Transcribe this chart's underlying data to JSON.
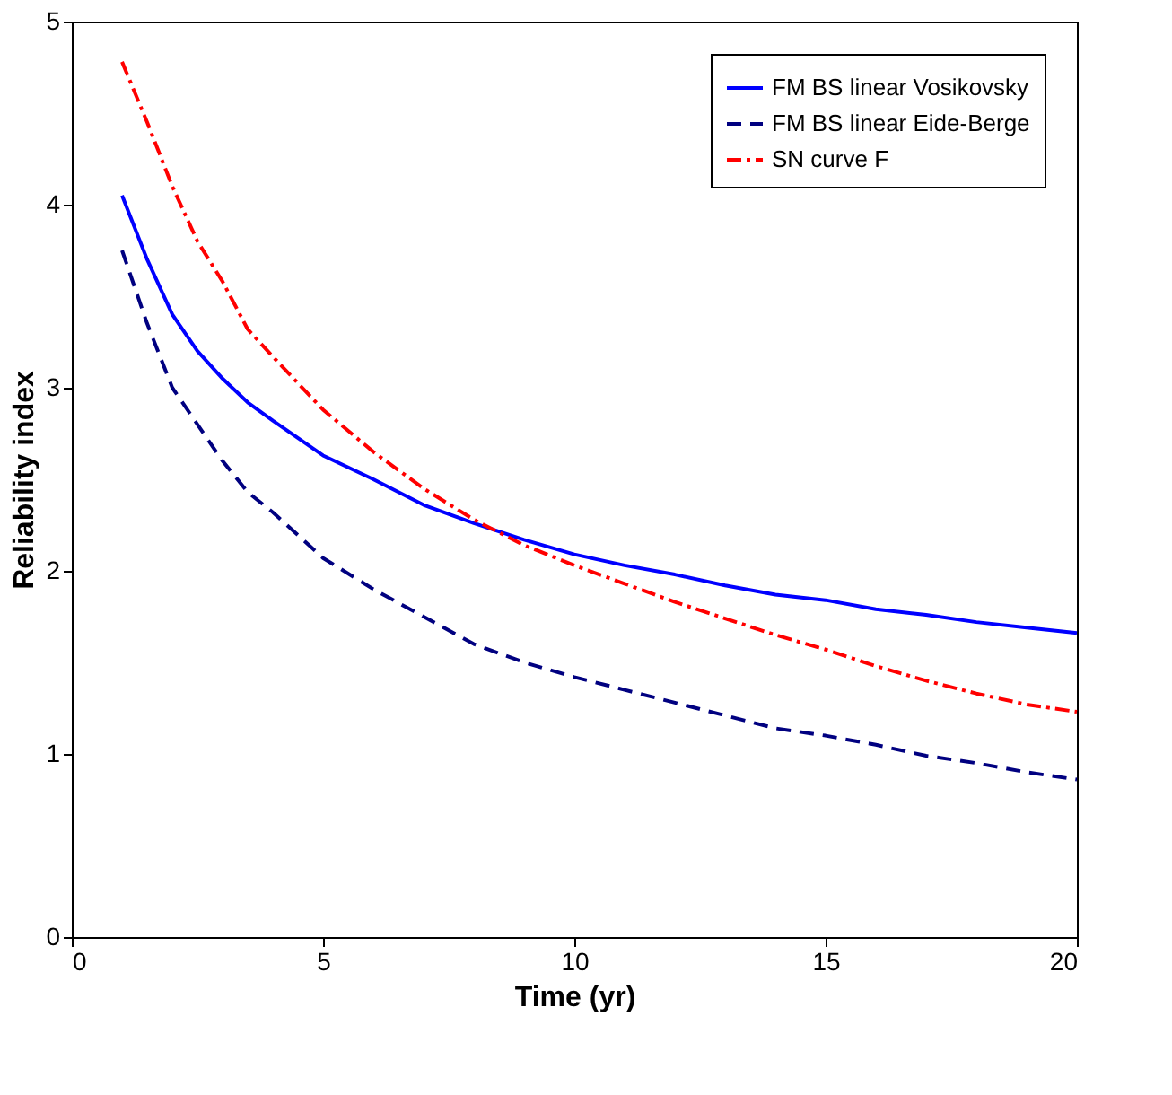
{
  "chart_data": {
    "type": "line",
    "xlabel": "Time (yr)",
    "ylabel": "Reliability index",
    "xlim": [
      0,
      20
    ],
    "ylim": [
      0,
      5
    ],
    "xticks": [
      0,
      5,
      10,
      15,
      20
    ],
    "yticks": [
      0,
      1,
      2,
      3,
      4,
      5
    ],
    "grid": false,
    "legend": "top right",
    "marker": "none",
    "x": [
      1,
      1.5,
      2,
      2.5,
      3,
      3.5,
      4,
      5,
      6,
      7,
      8,
      9,
      10,
      11,
      12,
      13,
      14,
      15,
      16,
      17,
      18,
      19,
      20
    ],
    "series": [
      {
        "name": "FM BS linear Vosikovsky",
        "color": "#0000ff",
        "line_style": "solid",
        "values": [
          4.05,
          3.7,
          3.4,
          3.2,
          3.05,
          2.92,
          2.82,
          2.63,
          2.5,
          2.36,
          2.26,
          2.17,
          2.09,
          2.03,
          1.98,
          1.92,
          1.87,
          1.84,
          1.79,
          1.76,
          1.72,
          1.69,
          1.66
        ]
      },
      {
        "name": "FM BS linear Eide-Berge",
        "color": "#000080",
        "line_style": "dashed",
        "values": [
          3.75,
          3.35,
          3.0,
          2.8,
          2.6,
          2.43,
          2.32,
          2.07,
          1.9,
          1.75,
          1.6,
          1.5,
          1.42,
          1.35,
          1.28,
          1.21,
          1.14,
          1.1,
          1.05,
          0.99,
          0.95,
          0.9,
          0.86
        ]
      },
      {
        "name": "SN curve F",
        "color": "#ff0000",
        "line_style": "dashdot",
        "values": [
          4.78,
          4.45,
          4.1,
          3.8,
          3.58,
          3.32,
          3.17,
          2.88,
          2.65,
          2.45,
          2.28,
          2.14,
          2.03,
          1.93,
          1.83,
          1.74,
          1.65,
          1.57,
          1.48,
          1.4,
          1.33,
          1.27,
          1.23
        ]
      }
    ]
  }
}
